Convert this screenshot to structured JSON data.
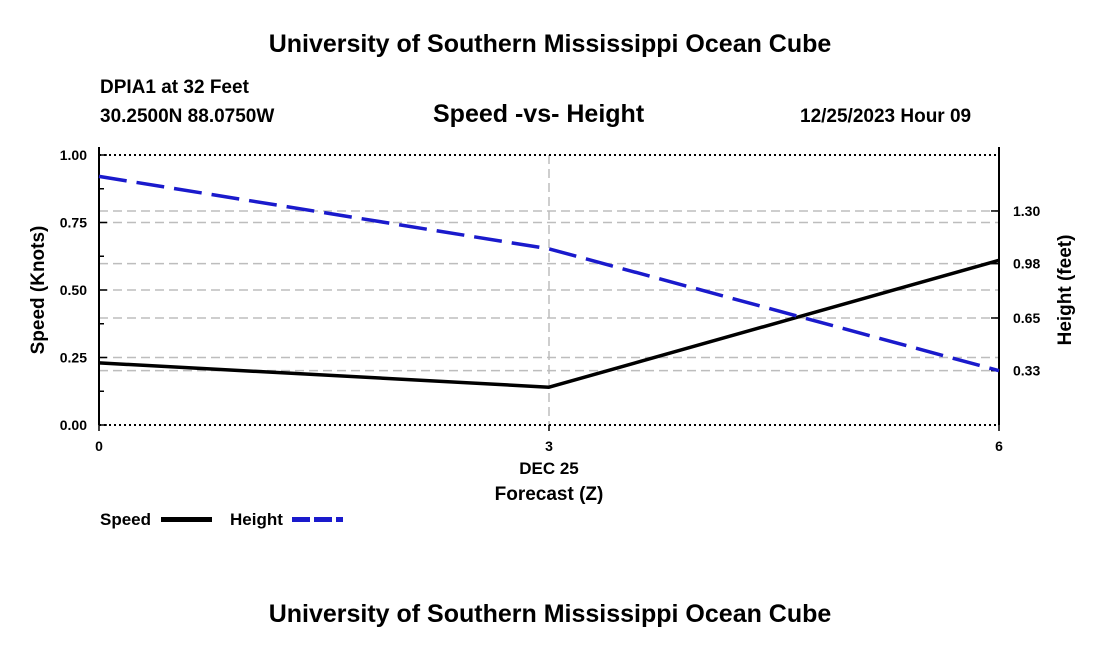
{
  "org_title_top": "University of Southern Mississippi Ocean Cube",
  "org_title_bottom": "University of Southern Mississippi Ocean Cube",
  "station": {
    "name": "DPIA1 at 32 Feet",
    "coords": "30.2500N  88.0750W",
    "datetime": "12/25/2023 Hour 09"
  },
  "colors": {
    "speed": "#000000",
    "height": "#1a1acc",
    "grid": "#bdbdbd"
  },
  "chart_data": {
    "type": "line",
    "title": "Speed -vs- Height",
    "xlabel": "Forecast (Z)",
    "x_date_label": "DEC 25",
    "ylabel_left": "Speed (Knots)",
    "ylabel_right": "Height (feet)",
    "x": [
      0,
      3,
      6
    ],
    "x_tick_labels": [
      "0",
      "3",
      "6"
    ],
    "xlim": [
      0,
      6
    ],
    "ylim_left": [
      0,
      1.0
    ],
    "left_ticks": [
      0.0,
      0.25,
      0.5,
      0.75,
      1.0
    ],
    "left_tick_labels": [
      "0.00",
      "0.25",
      "0.50",
      "0.75",
      "1.00"
    ],
    "ylim_right": [
      0.0,
      1.64
    ],
    "right_ticks": [
      0.33,
      0.65,
      0.98,
      1.3
    ],
    "right_tick_labels": [
      "0.33",
      "0.65",
      "0.98",
      "1.30"
    ],
    "grid": true,
    "series": [
      {
        "name": "Speed",
        "axis": "left",
        "style": "solid",
        "values": [
          0.23,
          0.14,
          0.61
        ]
      },
      {
        "name": "Height",
        "axis": "right",
        "style": "dashed",
        "values": [
          1.51,
          1.07,
          0.33
        ]
      }
    ],
    "legend": [
      "Speed",
      "Height"
    ]
  }
}
